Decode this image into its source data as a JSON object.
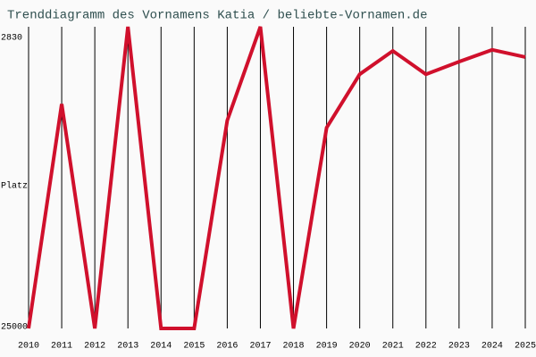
{
  "chart_data": {
    "type": "line",
    "title": "Trenddiagramm des Vornamens Katia / beliebte-Vornamen.de",
    "y_label": "Platz",
    "x": [
      2010,
      2011,
      2012,
      2013,
      2014,
      2015,
      2016,
      2017,
      2018,
      2019,
      2020,
      2021,
      2022,
      2023,
      2024,
      2025
    ],
    "xlim": [
      2010,
      2025
    ],
    "xticks": [
      2010,
      2011,
      2012,
      2013,
      2014,
      2015,
      2016,
      2017,
      2018,
      2019,
      2020,
      2021,
      2022,
      2023,
      2024,
      2025
    ],
    "ylim": [
      25000,
      2830
    ],
    "yticks": [
      2830,
      25000
    ],
    "grid": true,
    "series": [
      {
        "color": "#d0102c",
        "values": [
          25000,
          8000,
          25000,
          2150,
          25000,
          25000,
          9250,
          2150,
          25000,
          9800,
          5750,
          3980,
          5750,
          4800,
          3900,
          4450
        ]
      }
    ]
  }
}
